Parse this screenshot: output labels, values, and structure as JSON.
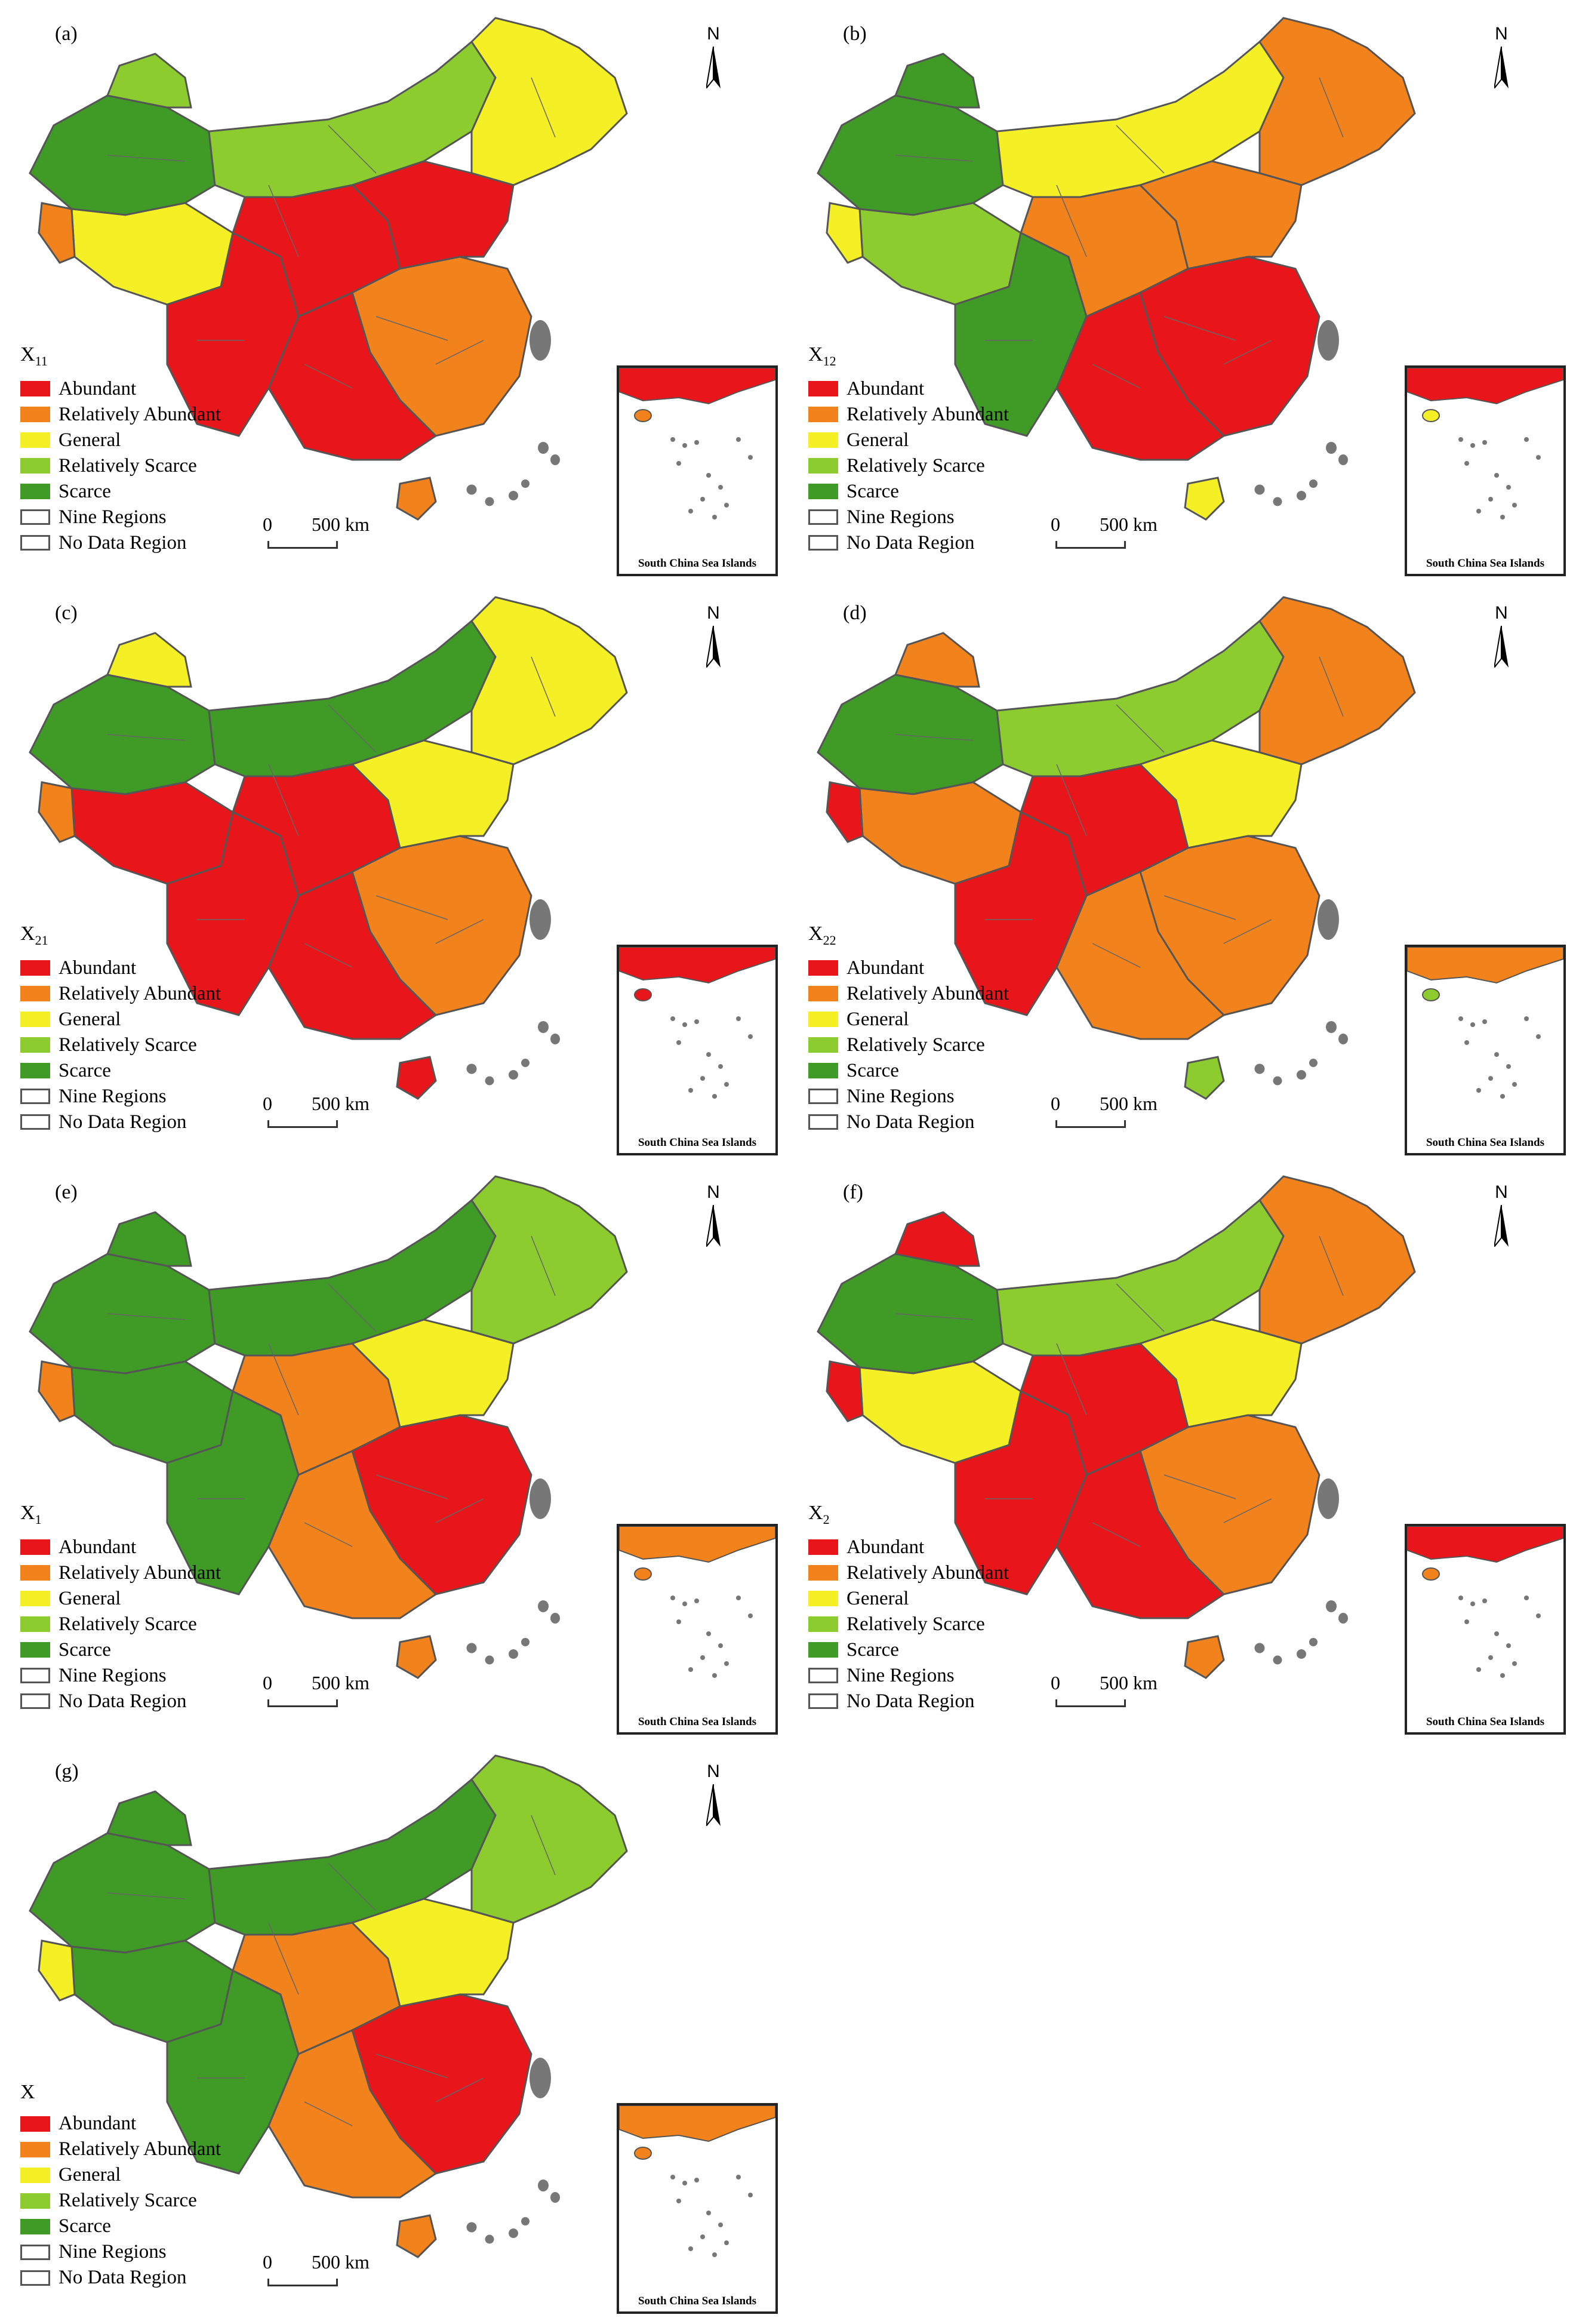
{
  "colors": {
    "abundant": "#e8151a",
    "relatively_abundant": "#f2821c",
    "general": "#f4f025",
    "relatively_scarce": "#8ccc2f",
    "scarce": "#3f9b26",
    "outline": "#555555",
    "island": "#777777"
  },
  "north_letter": "N",
  "scale": {
    "zero": "0",
    "distance": "500 km"
  },
  "inset_caption": "South China Sea Islands",
  "legend_items": [
    {
      "key": "abundant",
      "label": "Abundant"
    },
    {
      "key": "relatively_abundant",
      "label": "Relatively Abundant"
    },
    {
      "key": "general",
      "label": "General"
    },
    {
      "key": "relatively_scarce",
      "label": "Relatively Scarce"
    },
    {
      "key": "scarce",
      "label": "Scarce"
    },
    {
      "key": "nine_regions",
      "label": "Nine Regions"
    },
    {
      "key": "no_data",
      "label": "No Data Region"
    }
  ],
  "panels": [
    {
      "label": "(a)",
      "var": "X",
      "sub": "11",
      "palette": [
        "scarce",
        "relatively_scarce",
        "general",
        "relatively_abundant",
        "abundant",
        "relatively_scarce",
        "general",
        "abundant",
        "relatively_abundant",
        "abundant",
        "abundant",
        "relatively_abundant"
      ]
    },
    {
      "label": "(b)",
      "var": "X",
      "sub": "12",
      "palette": [
        "scarce",
        "scarce",
        "relatively_scarce",
        "general",
        "scarce",
        "general",
        "relatively_abundant",
        "relatively_abundant",
        "abundant",
        "abundant",
        "relatively_abundant",
        "general"
      ]
    },
    {
      "label": "(c)",
      "var": "X",
      "sub": "21",
      "palette": [
        "scarce",
        "general",
        "abundant",
        "relatively_abundant",
        "abundant",
        "scarce",
        "general",
        "abundant",
        "relatively_abundant",
        "abundant",
        "general",
        "abundant"
      ]
    },
    {
      "label": "(d)",
      "var": "X",
      "sub": "22",
      "palette": [
        "scarce",
        "relatively_abundant",
        "relatively_abundant",
        "abundant",
        "abundant",
        "relatively_scarce",
        "relatively_abundant",
        "abundant",
        "relatively_abundant",
        "relatively_abundant",
        "general",
        "relatively_scarce"
      ]
    },
    {
      "label": "(e)",
      "var": "X",
      "sub": "1",
      "palette": [
        "scarce",
        "scarce",
        "scarce",
        "relatively_abundant",
        "scarce",
        "scarce",
        "relatively_scarce",
        "relatively_abundant",
        "abundant",
        "relatively_abundant",
        "general",
        "relatively_abundant"
      ]
    },
    {
      "label": "(f)",
      "var": "X",
      "sub": "2",
      "palette": [
        "scarce",
        "abundant",
        "general",
        "abundant",
        "abundant",
        "relatively_scarce",
        "relatively_abundant",
        "abundant",
        "relatively_abundant",
        "abundant",
        "general",
        "relatively_abundant"
      ]
    },
    {
      "label": "(g)",
      "var": "X",
      "sub": "",
      "palette": [
        "scarce",
        "scarce",
        "scarce",
        "general",
        "scarce",
        "scarce",
        "relatively_scarce",
        "relatively_abundant",
        "abundant",
        "relatively_abundant",
        "general",
        "relatively_abundant"
      ]
    }
  ]
}
